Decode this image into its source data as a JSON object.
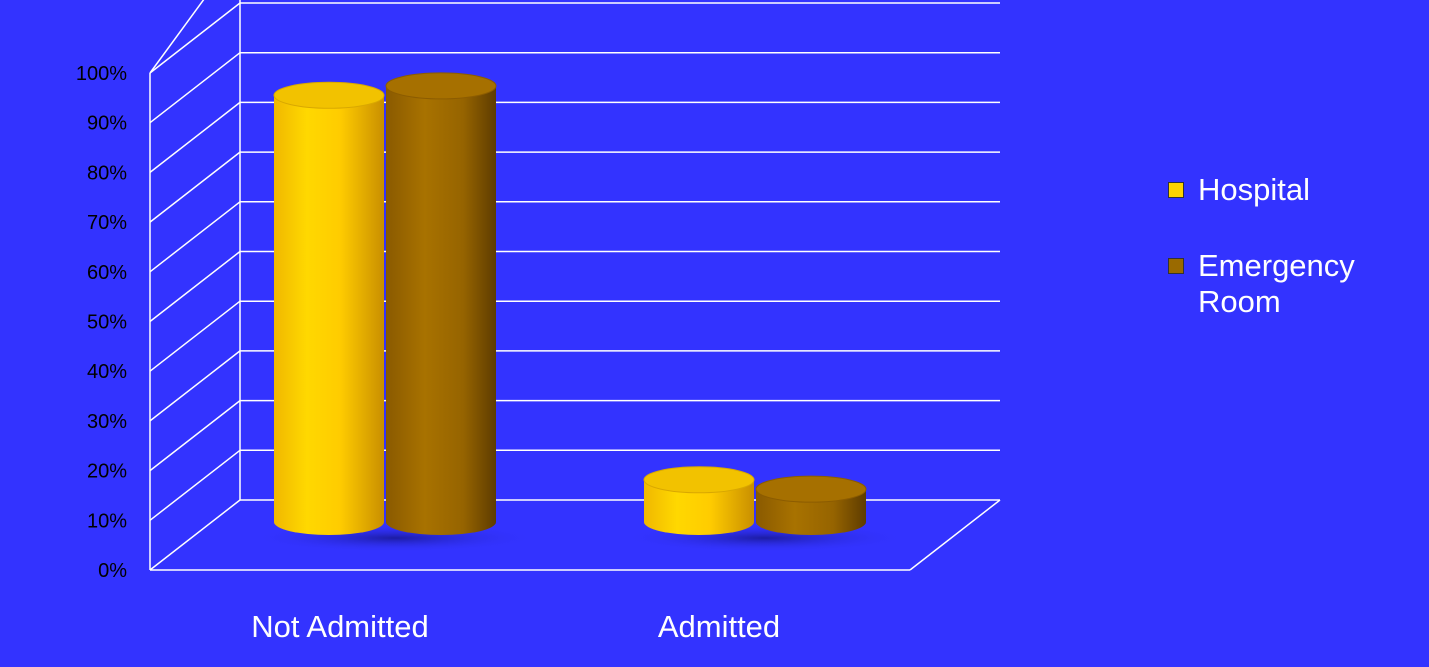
{
  "chart_data": {
    "type": "bar",
    "style": "3d-cylinder",
    "categories": [
      "Not Admitted",
      "Admitted"
    ],
    "series": [
      {
        "name": "Hospital",
        "values": [
          91,
          9
        ],
        "color": "#f5c400"
      },
      {
        "name": "Emergency Room",
        "values": [
          93,
          7
        ],
        "color": "#9a6a00"
      }
    ],
    "ylim": [
      0,
      100
    ],
    "y_ticks": [
      "0%",
      "10%",
      "20%",
      "30%",
      "40%",
      "50%",
      "60%",
      "70%",
      "80%",
      "90%",
      "100%"
    ],
    "grid": true,
    "legend_position": "right",
    "background": "#3333ff",
    "grid_color": "#ffffff"
  }
}
